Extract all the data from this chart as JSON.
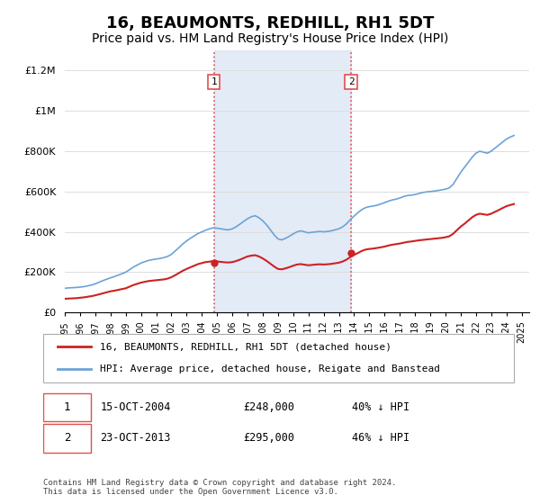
{
  "title": "16, BEAUMONTS, REDHILL, RH1 5DT",
  "subtitle": "Price paid vs. HM Land Registry's House Price Index (HPI)",
  "title_fontsize": 13,
  "subtitle_fontsize": 10,
  "ylabel_ticks": [
    "£0",
    "£200K",
    "£400K",
    "£600K",
    "£800K",
    "£1M",
    "£1.2M"
  ],
  "ytick_values": [
    0,
    200000,
    400000,
    600000,
    800000,
    1000000,
    1200000
  ],
  "ylim": [
    0,
    1300000
  ],
  "xlim_start": 1995,
  "xlim_end": 2025.5,
  "x_tick_years": [
    1995,
    1996,
    1997,
    1998,
    1999,
    2000,
    2001,
    2002,
    2003,
    2004,
    2005,
    2006,
    2007,
    2008,
    2009,
    2010,
    2011,
    2012,
    2013,
    2014,
    2015,
    2016,
    2017,
    2018,
    2019,
    2020,
    2021,
    2022,
    2023,
    2024,
    2025
  ],
  "sale1_x": 2004.79,
  "sale1_y": 248000,
  "sale2_x": 2013.8,
  "sale2_y": 295000,
  "sale1_label": "1",
  "sale2_label": "2",
  "shade_color": "#c8d8f0",
  "shade_alpha": 0.5,
  "vline_color": "#e05050",
  "vline_style": ":",
  "hpi_color": "#6ba3d6",
  "price_color": "#cc2222",
  "legend1_label": "16, BEAUMONTS, REDHILL, RH1 5DT (detached house)",
  "legend2_label": "HPI: Average price, detached house, Reigate and Banstead",
  "table_row1": [
    "1",
    "15-OCT-2004",
    "£248,000",
    "40% ↓ HPI"
  ],
  "table_row2": [
    "2",
    "23-OCT-2013",
    "£295,000",
    "46% ↓ HPI"
  ],
  "footnote": "Contains HM Land Registry data © Crown copyright and database right 2024.\nThis data is licensed under the Open Government Licence v3.0.",
  "hpi_data_x": [
    1995.0,
    1995.25,
    1995.5,
    1995.75,
    1996.0,
    1996.25,
    1996.5,
    1996.75,
    1997.0,
    1997.25,
    1997.5,
    1997.75,
    1998.0,
    1998.25,
    1998.5,
    1998.75,
    1999.0,
    1999.25,
    1999.5,
    1999.75,
    2000.0,
    2000.25,
    2000.5,
    2000.75,
    2001.0,
    2001.25,
    2001.5,
    2001.75,
    2002.0,
    2002.25,
    2002.5,
    2002.75,
    2003.0,
    2003.25,
    2003.5,
    2003.75,
    2004.0,
    2004.25,
    2004.5,
    2004.75,
    2005.0,
    2005.25,
    2005.5,
    2005.75,
    2006.0,
    2006.25,
    2006.5,
    2006.75,
    2007.0,
    2007.25,
    2007.5,
    2007.75,
    2008.0,
    2008.25,
    2008.5,
    2008.75,
    2009.0,
    2009.25,
    2009.5,
    2009.75,
    2010.0,
    2010.25,
    2010.5,
    2010.75,
    2011.0,
    2011.25,
    2011.5,
    2011.75,
    2012.0,
    2012.25,
    2012.5,
    2012.75,
    2013.0,
    2013.25,
    2013.5,
    2013.75,
    2014.0,
    2014.25,
    2014.5,
    2014.75,
    2015.0,
    2015.25,
    2015.5,
    2015.75,
    2016.0,
    2016.25,
    2016.5,
    2016.75,
    2017.0,
    2017.25,
    2017.5,
    2017.75,
    2018.0,
    2018.25,
    2018.5,
    2018.75,
    2019.0,
    2019.25,
    2019.5,
    2019.75,
    2020.0,
    2020.25,
    2020.5,
    2020.75,
    2021.0,
    2021.25,
    2021.5,
    2021.75,
    2022.0,
    2022.25,
    2022.5,
    2022.75,
    2023.0,
    2023.25,
    2023.5,
    2023.75,
    2024.0,
    2024.25,
    2024.5
  ],
  "hpi_data_y": [
    120000,
    122000,
    123000,
    124000,
    126000,
    128000,
    132000,
    136000,
    142000,
    150000,
    158000,
    165000,
    172000,
    178000,
    185000,
    192000,
    200000,
    212000,
    225000,
    235000,
    245000,
    252000,
    258000,
    262000,
    265000,
    268000,
    272000,
    278000,
    288000,
    305000,
    322000,
    340000,
    355000,
    368000,
    380000,
    392000,
    400000,
    408000,
    415000,
    420000,
    418000,
    415000,
    412000,
    410000,
    415000,
    425000,
    438000,
    452000,
    465000,
    475000,
    480000,
    470000,
    455000,
    435000,
    410000,
    385000,
    365000,
    360000,
    368000,
    378000,
    390000,
    400000,
    405000,
    400000,
    395000,
    398000,
    400000,
    402000,
    400000,
    402000,
    405000,
    410000,
    415000,
    425000,
    440000,
    460000,
    478000,
    495000,
    510000,
    520000,
    525000,
    528000,
    532000,
    538000,
    545000,
    552000,
    558000,
    562000,
    568000,
    575000,
    580000,
    582000,
    585000,
    590000,
    595000,
    598000,
    600000,
    602000,
    605000,
    608000,
    612000,
    618000,
    635000,
    665000,
    695000,
    720000,
    745000,
    770000,
    790000,
    800000,
    795000,
    790000,
    800000,
    815000,
    830000,
    845000,
    860000,
    870000,
    878000
  ],
  "price_data_x": [
    1995.0,
    1995.25,
    1995.5,
    1995.75,
    1996.0,
    1996.25,
    1996.5,
    1996.75,
    1997.0,
    1997.25,
    1997.5,
    1997.75,
    1998.0,
    1998.25,
    1998.5,
    1998.75,
    1999.0,
    1999.25,
    1999.5,
    1999.75,
    2000.0,
    2000.25,
    2000.5,
    2000.75,
    2001.0,
    2001.25,
    2001.5,
    2001.75,
    2002.0,
    2002.25,
    2002.5,
    2002.75,
    2003.0,
    2003.25,
    2003.5,
    2003.75,
    2004.0,
    2004.25,
    2004.5,
    2004.75,
    2005.0,
    2005.25,
    2005.5,
    2005.75,
    2006.0,
    2006.25,
    2006.5,
    2006.75,
    2007.0,
    2007.25,
    2007.5,
    2007.75,
    2008.0,
    2008.25,
    2008.5,
    2008.75,
    2009.0,
    2009.25,
    2009.5,
    2009.75,
    2010.0,
    2010.25,
    2010.5,
    2010.75,
    2011.0,
    2011.25,
    2011.5,
    2011.75,
    2012.0,
    2012.25,
    2012.5,
    2012.75,
    2013.0,
    2013.25,
    2013.5,
    2013.75,
    2014.0,
    2014.25,
    2014.5,
    2014.75,
    2015.0,
    2015.25,
    2015.5,
    2015.75,
    2016.0,
    2016.25,
    2016.5,
    2016.75,
    2017.0,
    2017.25,
    2017.5,
    2017.75,
    2018.0,
    2018.25,
    2018.5,
    2018.75,
    2019.0,
    2019.25,
    2019.5,
    2019.75,
    2020.0,
    2020.25,
    2020.5,
    2020.75,
    2021.0,
    2021.25,
    2021.5,
    2021.75,
    2022.0,
    2022.25,
    2022.5,
    2022.75,
    2023.0,
    2023.25,
    2023.5,
    2023.75,
    2024.0,
    2024.25,
    2024.5
  ],
  "price_data_y": [
    68000,
    69000,
    70000,
    71000,
    73000,
    75000,
    78000,
    81000,
    85000,
    90000,
    95000,
    100000,
    105000,
    108000,
    112000,
    116000,
    120000,
    128000,
    136000,
    142000,
    148000,
    152000,
    156000,
    158000,
    160000,
    162000,
    164000,
    168000,
    175000,
    185000,
    196000,
    207000,
    216000,
    224000,
    232000,
    240000,
    245000,
    250000,
    252000,
    255000,
    253000,
    251000,
    249000,
    248000,
    250000,
    255000,
    262000,
    270000,
    278000,
    282000,
    284000,
    278000,
    268000,
    256000,
    242000,
    228000,
    216000,
    214000,
    219000,
    225000,
    232000,
    238000,
    240000,
    237000,
    234000,
    236000,
    238000,
    239000,
    238000,
    239000,
    241000,
    244000,
    247000,
    253000,
    262000,
    275000,
    286000,
    295000,
    305000,
    312000,
    315000,
    317000,
    320000,
    323000,
    327000,
    332000,
    336000,
    339000,
    342000,
    346000,
    350000,
    352000,
    355000,
    358000,
    360000,
    362000,
    364000,
    366000,
    368000,
    370000,
    373000,
    378000,
    390000,
    408000,
    426000,
    440000,
    456000,
    472000,
    484000,
    490000,
    487000,
    484000,
    490000,
    499000,
    508000,
    518000,
    527000,
    533000,
    538000
  ]
}
